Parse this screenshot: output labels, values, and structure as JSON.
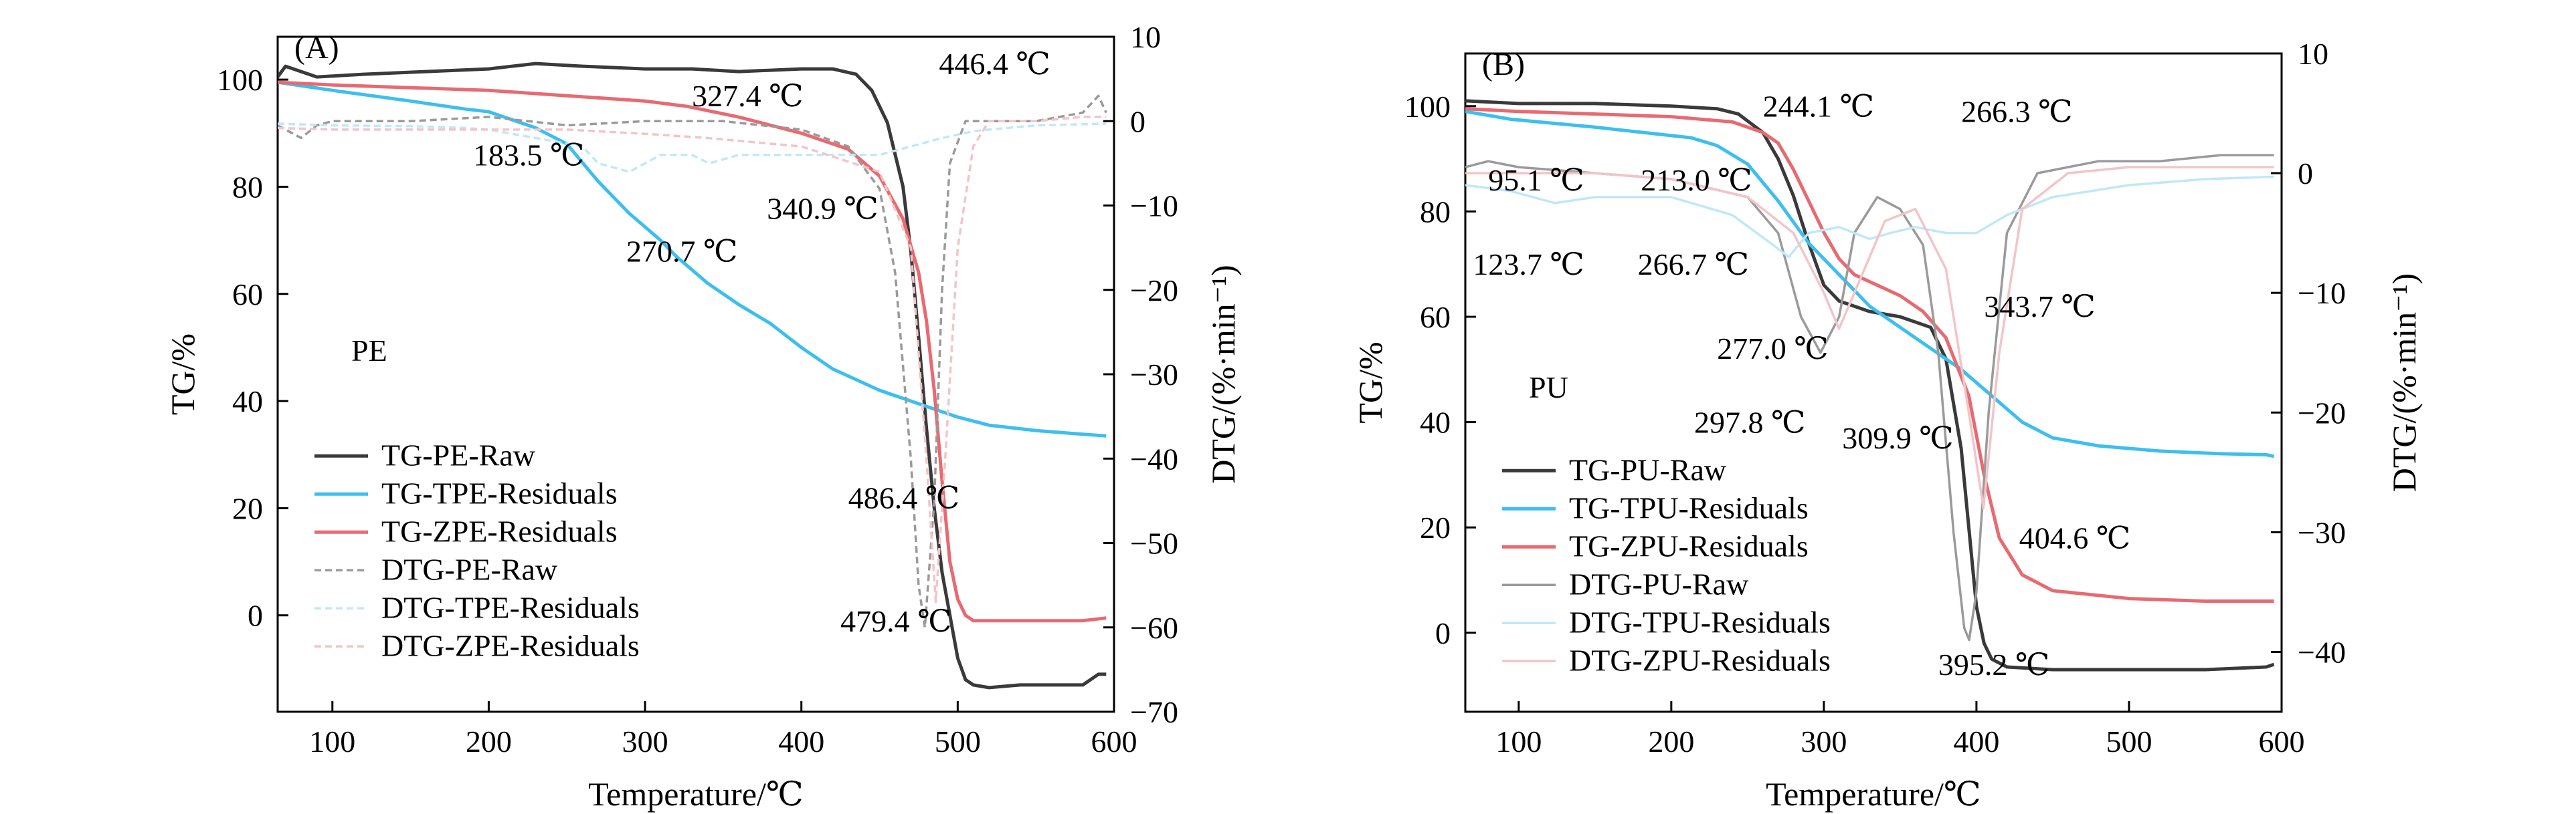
{
  "chart_data": [
    {
      "panel": "(A)",
      "type": "line",
      "xlabel": "Temperature/℃",
      "ylabel": "TG/%",
      "y2label": "DTG/(%·min⁻¹)",
      "xlim": [
        65,
        600
      ],
      "ylim": [
        -18,
        108
      ],
      "y2lim": [
        -70,
        10
      ],
      "xticks": [
        100,
        200,
        300,
        400,
        500,
        600
      ],
      "yticks": [
        0,
        20,
        40,
        60,
        80,
        100
      ],
      "y2ticks": [
        10,
        0,
        -10,
        -20,
        -30,
        -40,
        -50,
        -60,
        -70
      ],
      "sample_label": "PE",
      "legend_position": "bottom-left",
      "series": [
        {
          "name": "TG-PE-Raw",
          "axis": "left",
          "color": "#3a3a3a",
          "style": "solid",
          "x": [
            65,
            70,
            90,
            120,
            160,
            200,
            230,
            260,
            300,
            330,
            360,
            400,
            420,
            435,
            445,
            455,
            465,
            470,
            475,
            480,
            485,
            490,
            495,
            500,
            505,
            510,
            520,
            540,
            560,
            580,
            585,
            590,
            595
          ],
          "y": [
            100.5,
            102.5,
            100.5,
            101,
            101.5,
            102,
            103,
            102.5,
            102,
            102,
            101.5,
            102,
            102,
            101,
            98,
            92,
            80,
            68,
            52,
            35,
            20,
            8,
            0,
            -8,
            -12,
            -13,
            -13.5,
            -13,
            -13,
            -13,
            -12,
            -11,
            -11
          ]
        },
        {
          "name": "TG-TPE-Residuals",
          "axis": "left",
          "color": "#3dbfee",
          "style": "solid",
          "x": [
            65,
            100,
            150,
            185,
            200,
            230,
            250,
            270,
            290,
            310,
            320,
            340,
            360,
            380,
            400,
            420,
            450,
            480,
            500,
            520,
            550,
            580,
            595
          ],
          "y": [
            99.5,
            98,
            96,
            94.5,
            94,
            91,
            88,
            81,
            75,
            70,
            67,
            62,
            58,
            54.5,
            50,
            46,
            42,
            39,
            37,
            35.5,
            34.5,
            33.8,
            33.5
          ]
        },
        {
          "name": "TG-ZPE-Residuals",
          "axis": "left",
          "color": "#e86a70",
          "style": "solid",
          "x": [
            65,
            100,
            150,
            200,
            250,
            300,
            327,
            360,
            400,
            430,
            450,
            465,
            475,
            480,
            485,
            490,
            495,
            500,
            505,
            510,
            520,
            550,
            580,
            595
          ],
          "y": [
            99.5,
            99,
            98.5,
            98,
            97,
            96,
            95,
            93,
            90,
            87,
            82,
            74,
            64,
            55,
            42,
            25,
            10,
            3,
            0,
            -1,
            -1,
            -1,
            -1,
            -0.5
          ]
        },
        {
          "name": "DTG-PE-Raw",
          "axis": "right",
          "color": "#9a9a9a",
          "style": "dashed",
          "x": [
            65,
            80,
            90,
            100,
            150,
            200,
            250,
            300,
            350,
            400,
            430,
            450,
            460,
            470,
            475,
            479,
            485,
            490,
            495,
            505,
            520,
            550,
            580,
            590,
            595
          ],
          "y": [
            -0.5,
            -2,
            -0.5,
            0,
            0,
            0.5,
            -0.5,
            0,
            0,
            -1,
            -3,
            -8,
            -18,
            -40,
            -55,
            -60,
            -45,
            -20,
            -5,
            0,
            0,
            0,
            1,
            3,
            1
          ]
        },
        {
          "name": "DTG-TPE-Residuals",
          "axis": "right",
          "color": "#bfe8f7",
          "style": "dashed",
          "x": [
            65,
            100,
            150,
            185,
            200,
            230,
            260,
            270,
            290,
            310,
            330,
            341,
            360,
            400,
            430,
            450,
            470,
            490,
            510,
            520,
            550,
            595
          ],
          "y": [
            -0.3,
            -0.5,
            -0.6,
            -0.8,
            -1,
            -2,
            -3,
            -5,
            -6,
            -4,
            -4,
            -5,
            -4,
            -4,
            -4,
            -4,
            -3,
            -2,
            -1.2,
            -1,
            -0.5,
            -0.3
          ]
        },
        {
          "name": "DTG-ZPE-Residuals",
          "axis": "right",
          "color": "#f2c4c8",
          "style": "dashed",
          "x": [
            65,
            100,
            150,
            200,
            250,
            300,
            340,
            400,
            450,
            470,
            480,
            486,
            492,
            500,
            510,
            520,
            550,
            580,
            595
          ],
          "y": [
            -0.8,
            -1,
            -1,
            -1,
            -1,
            -1.5,
            -2,
            -3,
            -6,
            -15,
            -40,
            -57,
            -40,
            -15,
            -3,
            0,
            0,
            0.5,
            0.5
          ]
        }
      ],
      "annotations": [
        {
          "text": "183.5 ℃",
          "x": 190,
          "y": 84
        },
        {
          "text": "270.7 ℃",
          "x": 288,
          "y": 66
        },
        {
          "text": "327.4 ℃",
          "x": 330,
          "y": 95
        },
        {
          "text": "340.9 ℃",
          "x": 378,
          "y": 74
        },
        {
          "text": "446.4 ℃",
          "x": 488,
          "y": 101
        },
        {
          "text": "486.4 ℃",
          "x": 430,
          "y": 20
        },
        {
          "text": "479.4 ℃",
          "x": 425,
          "y": -3
        }
      ]
    },
    {
      "panel": "(B)",
      "type": "line",
      "xlabel": "Temperature/℃",
      "ylabel": "TG/%",
      "y2label": "DTG/(%·min⁻¹)",
      "xlim": [
        65,
        600
      ],
      "ylim": [
        -15,
        110
      ],
      "y2lim": [
        -45,
        10
      ],
      "xticks": [
        100,
        200,
        300,
        400,
        500,
        600
      ],
      "yticks": [
        0,
        20,
        40,
        60,
        80,
        100
      ],
      "y2ticks": [
        10,
        0,
        -10,
        -20,
        -30,
        -40
      ],
      "sample_label": "PU",
      "legend_position": "bottom-left",
      "series": [
        {
          "name": "TG-PU-Raw",
          "axis": "left",
          "color": "#3a3a3a",
          "style": "solid",
          "x": [
            65,
            100,
            150,
            200,
            230,
            244,
            260,
            270,
            280,
            290,
            300,
            310,
            330,
            350,
            370,
            380,
            390,
            395,
            400,
            405,
            410,
            420,
            450,
            500,
            550,
            590,
            595
          ],
          "y": [
            101,
            100.5,
            100.5,
            100,
            99.5,
            98.5,
            95,
            90,
            83,
            74,
            66,
            63,
            61,
            60,
            58,
            52,
            35,
            20,
            5,
            -2,
            -5,
            -6.5,
            -7,
            -7,
            -7,
            -6.5,
            -6
          ]
        },
        {
          "name": "TG-TPU-Residuals",
          "axis": "left",
          "color": "#3dbfee",
          "style": "solid",
          "x": [
            65,
            95,
            150,
            213,
            230,
            250,
            270,
            290,
            310,
            330,
            350,
            370,
            390,
            410,
            430,
            450,
            480,
            520,
            560,
            590,
            595
          ],
          "y": [
            99,
            97.5,
            96,
            94,
            92.5,
            89,
            82,
            74,
            68,
            62,
            58,
            54,
            50,
            45,
            40,
            37,
            35.5,
            34.5,
            34,
            33.8,
            33.5
          ]
        },
        {
          "name": "TG-ZPU-Residuals",
          "axis": "left",
          "color": "#e86a70",
          "style": "solid",
          "x": [
            65,
            100,
            150,
            200,
            240,
            260,
            270,
            280,
            290,
            300,
            310,
            320,
            335,
            350,
            365,
            380,
            395,
            405,
            415,
            430,
            450,
            500,
            550,
            590,
            595
          ],
          "y": [
            99.5,
            99,
            98.5,
            98,
            97,
            95,
            93,
            88,
            82,
            76,
            71,
            68,
            66,
            64,
            61,
            56,
            45,
            30,
            18,
            11,
            8,
            6.5,
            6,
            6,
            6
          ]
        },
        {
          "name": "DTG-PU-Raw",
          "axis": "right",
          "color": "#9a9a9a",
          "style": "solid",
          "x": [
            65,
            80,
            100,
            150,
            200,
            250,
            270,
            285,
            297.8,
            310,
            320,
            335,
            350,
            365,
            375,
            385,
            392,
            395.2,
            400,
            408,
            420,
            440,
            480,
            520,
            560,
            590,
            595
          ],
          "y": [
            0.5,
            1,
            0.5,
            0,
            -0.5,
            -2,
            -5,
            -12,
            -15,
            -12,
            -5,
            -2,
            -3,
            -6,
            -15,
            -30,
            -38,
            -39,
            -35,
            -20,
            -5,
            0,
            1,
            1,
            1.5,
            1.5,
            1.5
          ]
        },
        {
          "name": "DTG-TPU-Residuals",
          "axis": "right",
          "color": "#bfe8f7",
          "style": "solid",
          "x": [
            65,
            95,
            123.7,
            150,
            200,
            240,
            266.7,
            277,
            290,
            310,
            330,
            343.7,
            360,
            380,
            400,
            420,
            450,
            500,
            550,
            595
          ],
          "y": [
            -1,
            -1.5,
            -2.5,
            -2,
            -2,
            -3.5,
            -6,
            -7,
            -5,
            -4.5,
            -5.5,
            -5,
            -4.5,
            -5,
            -5,
            -3.5,
            -2,
            -1,
            -0.5,
            -0.3
          ]
        },
        {
          "name": "DTG-ZPU-Residuals",
          "axis": "right",
          "color": "#f2c4c8",
          "style": "solid",
          "x": [
            65,
            100,
            150,
            200,
            250,
            280,
            300,
            309.9,
            320,
            340,
            360,
            380,
            395,
            404.6,
            415,
            430,
            460,
            500,
            550,
            595
          ],
          "y": [
            0,
            0,
            0,
            -0.5,
            -2,
            -5,
            -10,
            -13,
            -10,
            -4,
            -3,
            -8,
            -20,
            -28,
            -15,
            -3,
            0,
            0.5,
            0.5,
            0.5
          ]
        }
      ],
      "annotations": [
        {
          "text": "95.1 ℃",
          "x": 80,
          "y": 84
        },
        {
          "text": "213.0 ℃",
          "x": 180,
          "y": 84
        },
        {
          "text": "244.1 ℃",
          "x": 260,
          "y": 98
        },
        {
          "text": "266.3 ℃",
          "x": 390,
          "y": 97
        },
        {
          "text": "123.7 ℃",
          "x": 70,
          "y": 68
        },
        {
          "text": "266.7 ℃",
          "x": 178,
          "y": 68
        },
        {
          "text": "343.7 ℃",
          "x": 405,
          "y": 60
        },
        {
          "text": "277.0 ℃",
          "x": 230,
          "y": 52
        },
        {
          "text": "297.8 ℃",
          "x": 215,
          "y": 38
        },
        {
          "text": "309.9 ℃",
          "x": 312,
          "y": 35
        },
        {
          "text": "404.6 ℃",
          "x": 428,
          "y": 16
        },
        {
          "text": "395.2 ℃",
          "x": 375,
          "y": -8
        }
      ]
    }
  ],
  "labels": {
    "annotation_color": "#000000"
  }
}
